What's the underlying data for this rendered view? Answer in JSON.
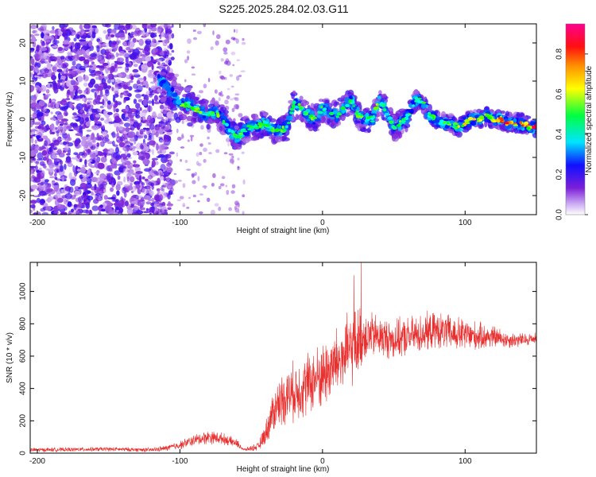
{
  "figure_title": "S225.2025.284.02.03.G11",
  "colors": {
    "accent": "#e8302f",
    "frame": "#000000"
  },
  "chart_data": [
    {
      "type": "heatmap",
      "title": "S225.2025.284.02.03.G11",
      "xlabel": "Height of straight line (km)",
      "ylabel": "Frequency (Hz)",
      "xlim": [
        -205,
        150
      ],
      "ylim": [
        -25,
        25
      ],
      "x_ticks": [
        -200,
        -100,
        0,
        100
      ],
      "x_tick_labels": [
        "-200",
        "-100",
        "0",
        "100"
      ],
      "y_ticks": [
        -20,
        -10,
        0,
        10,
        20
      ],
      "y_tick_labels": [
        "-20",
        "-10",
        "0",
        "10",
        "20"
      ],
      "colorbar": {
        "label": "Normalized spectral amplitude",
        "range": [
          0,
          0.95
        ],
        "ticks": [
          0.0,
          0.2,
          0.4,
          0.6,
          0.8
        ],
        "tick_labels": [
          "0.0",
          "0.2",
          "0.4",
          "0.6",
          "0.8"
        ],
        "colormap": [
          "#ffffff",
          "#7b1fd8",
          "#0000ff",
          "#00ffff",
          "#00ff00",
          "#ffff00",
          "#ff8000",
          "#ff0000",
          "#ff0080"
        ]
      },
      "noise_region": {
        "x_from": -205,
        "x_to": -110,
        "sparse_to": -55
      },
      "ridge": {
        "x": [
          -115,
          -110,
          -100,
          -95,
          -90,
          -85,
          -80,
          -75,
          -70,
          -65,
          -60,
          -55,
          -50,
          -45,
          -40,
          -35,
          -30,
          -25,
          -20,
          -15,
          -10,
          -5,
          0,
          5,
          10,
          15,
          20,
          25,
          30,
          35,
          40,
          45,
          50,
          55,
          60,
          65,
          70,
          75,
          80,
          85,
          90,
          95,
          100,
          105,
          110,
          115,
          120,
          125,
          130,
          135,
          140,
          145,
          150
        ],
        "freq": [
          10,
          9,
          4,
          4,
          3,
          2,
          1,
          2,
          0,
          -3,
          -5,
          -3,
          -2,
          -2,
          -1,
          -3,
          -3,
          -2,
          4,
          3,
          1,
          0,
          3,
          2,
          1,
          3,
          5,
          1,
          0,
          0,
          5,
          2,
          -2,
          -1,
          1,
          5,
          5,
          1,
          0,
          -1,
          -1,
          -2,
          -1,
          0,
          0,
          1,
          0,
          0,
          -1,
          -1,
          -1,
          -2,
          -2
        ]
      }
    },
    {
      "type": "line",
      "xlabel": "Height of straight line (km)",
      "ylabel": "SNR (10 * v/v)",
      "xlim": [
        -205,
        150
      ],
      "ylim": [
        0,
        1180
      ],
      "x_ticks": [
        -200,
        -100,
        0,
        100
      ],
      "x_tick_labels": [
        "-200",
        "-100",
        "0",
        "100"
      ],
      "y_ticks": [
        0,
        200,
        400,
        600,
        800,
        1000
      ],
      "y_tick_labels": [
        "0",
        "200",
        "400",
        "600",
        "800",
        "1000"
      ],
      "series": [
        {
          "name": "SNR",
          "color": "#e8302f",
          "x": [
            -205,
            -180,
            -150,
            -120,
            -110,
            -100,
            -90,
            -80,
            -70,
            -60,
            -55,
            -45,
            -40,
            -35,
            -30,
            -25,
            -20,
            -15,
            -10,
            -5,
            0,
            5,
            10,
            15,
            20,
            25,
            30,
            40,
            50,
            60,
            70,
            80,
            90,
            100,
            110,
            120,
            130,
            140,
            150
          ],
          "mean": [
            20,
            22,
            25,
            20,
            30,
            50,
            80,
            100,
            90,
            60,
            20,
            40,
            120,
            250,
            320,
            360,
            380,
            400,
            430,
            460,
            480,
            520,
            560,
            600,
            640,
            690,
            730,
            720,
            700,
            720,
            740,
            760,
            740,
            730,
            720,
            720,
            700,
            700,
            710
          ],
          "spread": [
            15,
            15,
            15,
            15,
            20,
            30,
            40,
            50,
            40,
            30,
            10,
            30,
            80,
            150,
            180,
            200,
            210,
            220,
            230,
            230,
            240,
            250,
            250,
            260,
            270,
            250,
            180,
            150,
            140,
            140,
            140,
            130,
            130,
            120,
            100,
            80,
            60,
            50,
            40
          ],
          "peaks": [
            {
              "x": 27,
              "y": 1180
            },
            {
              "x": 22,
              "y": 1100
            }
          ]
        }
      ]
    }
  ]
}
